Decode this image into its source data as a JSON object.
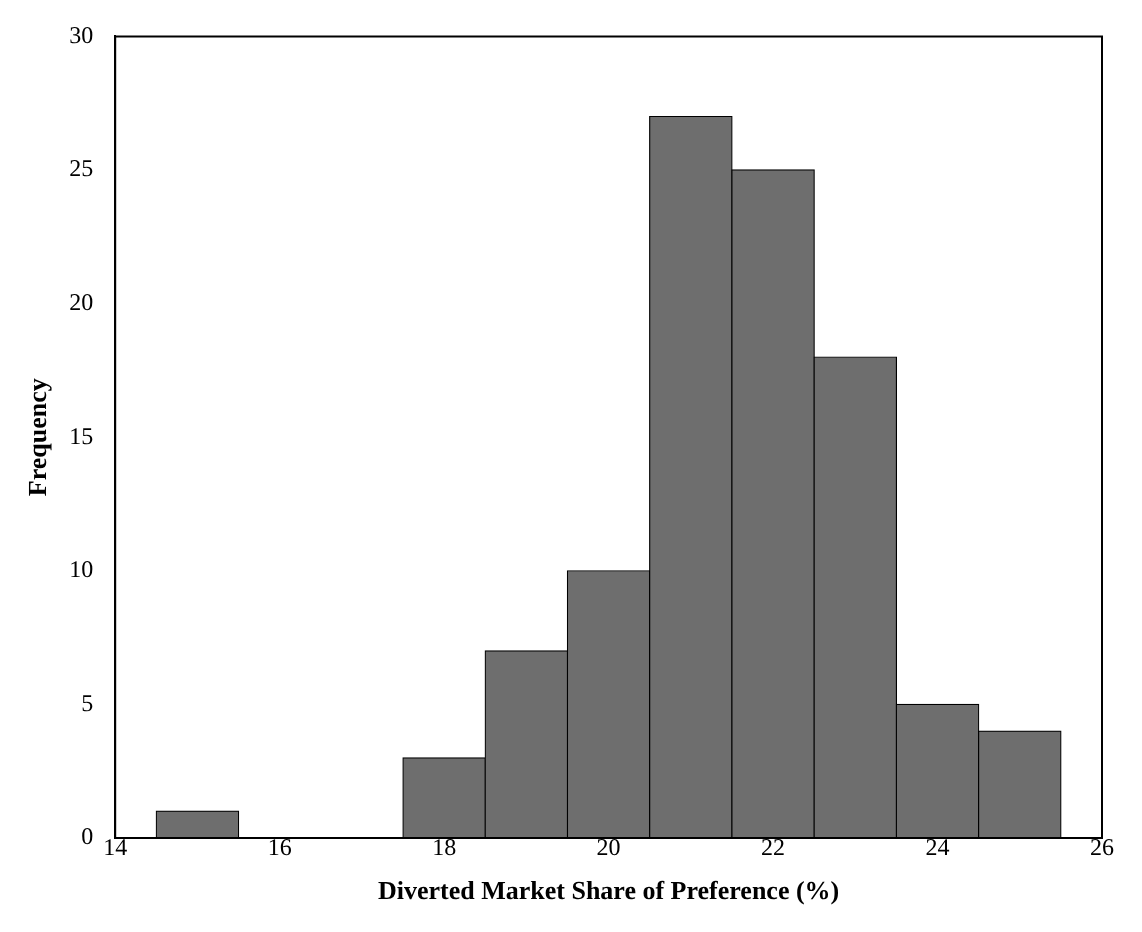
{
  "chart_data": {
    "type": "histogram",
    "xlabel": "Diverted Market Share of Preference (%)",
    "ylabel": "Frequency",
    "bins": [
      14.5,
      15.5,
      16.5,
      17.5,
      18.5,
      19.5,
      20.5,
      21.5,
      22.5,
      23.5,
      24.5,
      25.5
    ],
    "values": [
      1,
      0,
      0,
      3,
      7,
      10,
      27,
      25,
      18,
      5,
      4
    ],
    "color": "#6e6e6e",
    "xlim": [
      14,
      26
    ],
    "xticks": [
      14,
      16,
      18,
      20,
      22,
      24,
      26
    ],
    "ylim": [
      0,
      30
    ],
    "yticks": [
      0,
      5,
      10,
      15,
      20,
      25,
      30
    ],
    "grid": false,
    "legend": false
  }
}
